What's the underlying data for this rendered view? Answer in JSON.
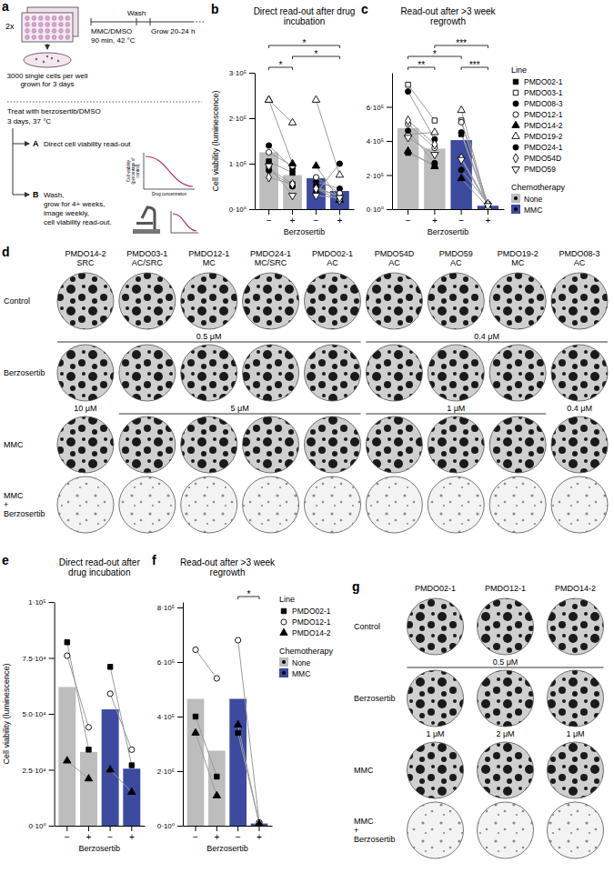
{
  "chart_data": [
    {
      "type": "bar",
      "panel": "b",
      "title": "Direct read-out after drug incubation",
      "y_label": "Cell viability (luminescence)",
      "x_label": "Berzosertib",
      "categories": [
        "−",
        "+",
        "−",
        "+"
      ],
      "groups": [
        "None",
        "None",
        "MMC",
        "MMC"
      ],
      "values": [
        125000,
        75000,
        68000,
        40000
      ],
      "colors": [
        "#bdbdbd",
        "#bdbdbd",
        "#3c4aa0",
        "#3c4aa0"
      ],
      "ylim": [
        0,
        300000
      ],
      "yticks": [
        {
          "value": 0,
          "label": "0·10⁰"
        },
        {
          "value": 100000,
          "label": "1·10⁵"
        },
        {
          "value": 200000,
          "label": "2·10⁵"
        },
        {
          "value": 300000,
          "label": "3·10⁵"
        }
      ],
      "series": [
        {
          "marker": "square",
          "values": [
            105000,
            80000,
            50000,
            25000
          ]
        },
        {
          "marker": "square-open",
          "values": [
            90000,
            55000,
            45000,
            30000
          ]
        },
        {
          "marker": "circle",
          "values": [
            140000,
            90000,
            60000,
            45000
          ]
        },
        {
          "marker": "circle-open",
          "values": [
            125000,
            95000,
            70000,
            35000
          ]
        },
        {
          "marker": "triangle",
          "values": [
            240000,
            100000,
            95000,
            20000
          ]
        },
        {
          "marker": "triangle-open",
          "values": [
            240000,
            190000,
            240000,
            75000
          ]
        },
        {
          "marker": "circle",
          "values": [
            85000,
            50000,
            35000,
            100000
          ]
        },
        {
          "marker": "diamond-open",
          "values": [
            70000,
            55000,
            45000,
            20000
          ]
        },
        {
          "marker": "triangle-down-open",
          "values": [
            95000,
            30000,
            30000,
            25000
          ]
        }
      ],
      "brackets": [
        {
          "from": 0,
          "to": 1,
          "label": "*"
        },
        {
          "from": 1,
          "to": 3,
          "label": "*"
        },
        {
          "from": 0,
          "to": 3,
          "label": "*"
        }
      ]
    },
    {
      "type": "bar",
      "panel": "c",
      "title": "Read-out after >3 week regrowth",
      "x_label": "Berzosertib",
      "categories": [
        "−",
        "+",
        "−",
        "+"
      ],
      "groups": [
        "None",
        "None",
        "MMC",
        "MMC"
      ],
      "values": [
        475000,
        355000,
        405000,
        20000
      ],
      "colors": [
        "#bdbdbd",
        "#bdbdbd",
        "#3c4aa0",
        "#3c4aa0"
      ],
      "ylim": [
        0,
        800000
      ],
      "yticks": [
        {
          "value": 0,
          "label": "0·10⁰"
        },
        {
          "value": 200000,
          "label": "2·10⁵"
        },
        {
          "value": 400000,
          "label": "4·10⁵"
        },
        {
          "value": 600000,
          "label": "6·10⁵"
        }
      ],
      "legend": "right",
      "legend_title": "Line",
      "fill_legend": {
        "title": "Chemotherapy",
        "items": [
          {
            "name": "None",
            "color": "#bdbdbd"
          },
          {
            "name": "MMC",
            "color": "#3c4aa0"
          }
        ]
      },
      "series": [
        {
          "name": "PMDO02-1",
          "marker": "square",
          "values": [
            330000,
            260000,
            440000,
            10000
          ]
        },
        {
          "name": "PMDO03-1",
          "marker": "square-open",
          "values": [
            730000,
            520000,
            520000,
            20000
          ]
        },
        {
          "name": "PMDO08-3",
          "marker": "circle",
          "values": [
            690000,
            410000,
            450000,
            20000
          ]
        },
        {
          "name": "PMDO12-1",
          "marker": "circle-open",
          "values": [
            500000,
            360000,
            510000,
            30000
          ]
        },
        {
          "name": "PMDO14-2",
          "marker": "triangle",
          "values": [
            340000,
            250000,
            180000,
            10000
          ]
        },
        {
          "name": "PMDO19-2",
          "marker": "triangle-open",
          "values": [
            440000,
            450000,
            580000,
            10000
          ]
        },
        {
          "name": "PMDO24-1",
          "marker": "circle",
          "values": [
            460000,
            270000,
            230000,
            30000
          ]
        },
        {
          "name": "PMDO54D",
          "marker": "diamond-open",
          "values": [
            520000,
            380000,
            300000,
            30000
          ]
        },
        {
          "name": "PMDO59",
          "marker": "triangle-down-open",
          "values": [
            420000,
            320000,
            290000,
            20000
          ]
        }
      ],
      "brackets": [
        {
          "from": 0,
          "to": 1,
          "label": "**"
        },
        {
          "from": 2,
          "to": 3,
          "label": "***"
        },
        {
          "from": 0,
          "to": 2,
          "label": "*"
        },
        {
          "from": 1,
          "to": 3,
          "label": "***"
        }
      ]
    },
    {
      "type": "bar",
      "panel": "e",
      "title": "Direct read-out after drug incubation",
      "y_label": "Cell viability (luminescence)",
      "x_label": "Berzosertib",
      "categories": [
        "−",
        "+",
        "−",
        "+"
      ],
      "groups": [
        "None",
        "None",
        "MMC",
        "MMC"
      ],
      "values": [
        62000,
        33000,
        52000,
        25500
      ],
      "colors": [
        "#bdbdbd",
        "#bdbdbd",
        "#3c4aa0",
        "#3c4aa0"
      ],
      "ylim": [
        0,
        100000
      ],
      "yticks": [
        {
          "value": 0,
          "label": "0·10⁰"
        },
        {
          "value": 25000,
          "label": "2.5·10⁴"
        },
        {
          "value": 50000,
          "label": "5.0·10⁴"
        },
        {
          "value": 75000,
          "label": "7.5·10⁴"
        },
        {
          "value": 100000,
          "label": "1·10⁵"
        }
      ],
      "series": [
        {
          "marker": "square",
          "values": [
            82000,
            34000,
            71000,
            27000
          ]
        },
        {
          "marker": "circle-open",
          "values": [
            76000,
            44000,
            59000,
            34000
          ]
        },
        {
          "marker": "triangle",
          "values": [
            29000,
            21000,
            25000,
            15000
          ]
        }
      ]
    },
    {
      "type": "bar",
      "panel": "f",
      "title": "Read-out after >3 week regrowth",
      "x_label": "Berzosertib",
      "categories": [
        "−",
        "+",
        "−",
        "+"
      ],
      "groups": [
        "None",
        "None",
        "MMC",
        "MMC"
      ],
      "values": [
        465000,
        275000,
        465000,
        8000
      ],
      "colors": [
        "#bdbdbd",
        "#bdbdbd",
        "#3c4aa0",
        "#3c4aa0"
      ],
      "ylim": [
        0,
        820000
      ],
      "yticks": [
        {
          "value": 0,
          "label": "0·10⁰"
        },
        {
          "value": 200000,
          "label": "2·10⁵"
        },
        {
          "value": 400000,
          "label": "4·10⁵"
        },
        {
          "value": 600000,
          "label": "6·10⁵"
        },
        {
          "value": 800000,
          "label": "8·10⁵"
        }
      ],
      "legend": "right",
      "legend_title": "Line",
      "fill_legend": {
        "title": "Chemotherapy",
        "items": [
          {
            "name": "None",
            "color": "#bdbdbd"
          },
          {
            "name": "MMC",
            "color": "#3c4aa0"
          }
        ]
      },
      "series": [
        {
          "name": "PMDO02-1",
          "marker": "square",
          "values": [
            400000,
            180000,
            340000,
            8000
          ]
        },
        {
          "name": "PMDO12-1",
          "marker": "circle-open",
          "values": [
            645000,
            540000,
            680000,
            12000
          ]
        },
        {
          "name": "PMDO14-2",
          "marker": "triangle",
          "values": [
            340000,
            110000,
            370000,
            6000
          ]
        }
      ],
      "brackets": [
        {
          "from": 2,
          "to": 3,
          "label": "*"
        }
      ]
    }
  ],
  "schematic": {
    "panel": "a",
    "plate_count": "2x",
    "timeline": [
      "MMC/DMSO",
      "90 min, 42 °C",
      "Wash",
      "Grow 20-24 h"
    ],
    "seeding": "3000 single cells per well grown for 3 days",
    "treatment": [
      "Treat with berzosertib/DMSO",
      "3 days, 37 °C"
    ],
    "branches": [
      {
        "label": "A",
        "text": [
          "Direct cell viability read-out"
        ]
      },
      {
        "label": "B",
        "text": [
          "Wash,",
          "grow for 4+ weeks,",
          "image weekly,",
          "cell viability read-out."
        ]
      }
    ],
    "curve_y_label": "Cell viability (percentage of control)",
    "curve_x_label": "Drug concentration"
  },
  "image_grids": [
    {
      "panel": "d",
      "columns": [
        {
          "line": "PMDO14-2",
          "subtype": "SRC"
        },
        {
          "line": "PMDO03-1",
          "subtype": "AC/SRC"
        },
        {
          "line": "PMDO12-1",
          "subtype": "MC"
        },
        {
          "line": "PMDO24-1",
          "subtype": "MC/SRC"
        },
        {
          "line": "PMDO02-1",
          "subtype": "AC"
        },
        {
          "line": "PMDO54D",
          "subtype": "AC"
        },
        {
          "line": "PMDO59",
          "subtype": "AC"
        },
        {
          "line": "PMDO19-2",
          "subtype": "MC"
        },
        {
          "line": "PMDO08-3",
          "subtype": "AC"
        }
      ],
      "rows": [
        [
          "Control"
        ],
        [
          "Berzosertib"
        ],
        [
          "MMC"
        ],
        [
          "MMC",
          "+",
          "Berzosertib"
        ]
      ],
      "concentrations": [
        {
          "row": 1,
          "from": 0,
          "to": 4,
          "label": "0.5 μM"
        },
        {
          "row": 1,
          "from": 5,
          "to": 8,
          "label": "0.4 μM"
        },
        {
          "row": 2,
          "from": 0,
          "to": 0,
          "label": "10 μM"
        },
        {
          "row": 2,
          "from": 1,
          "to": 4,
          "label": "5 μM"
        },
        {
          "row": 2,
          "from": 5,
          "to": 7,
          "label": "1 μM"
        },
        {
          "row": 2,
          "from": 8,
          "to": 8,
          "label": "0.4 μM"
        }
      ]
    },
    {
      "panel": "g",
      "columns": [
        {
          "line": "PMDO02-1"
        },
        {
          "line": "PMDO12-1"
        },
        {
          "line": "PMDO14-2"
        }
      ],
      "rows": [
        [
          "Control"
        ],
        [
          "Berzosertib"
        ],
        [
          "MMC"
        ],
        [
          "MMC",
          "+",
          "Berzosertib"
        ]
      ],
      "concentrations": [
        {
          "row": 1,
          "from": 0,
          "to": 2,
          "label": "0.5 μM"
        },
        {
          "row": 2,
          "from": 0,
          "to": 0,
          "label": "1 μM"
        },
        {
          "row": 2,
          "from": 1,
          "to": 1,
          "label": "2 μM"
        },
        {
          "row": 2,
          "from": 2,
          "to": 2,
          "label": "1 μM"
        }
      ]
    }
  ]
}
